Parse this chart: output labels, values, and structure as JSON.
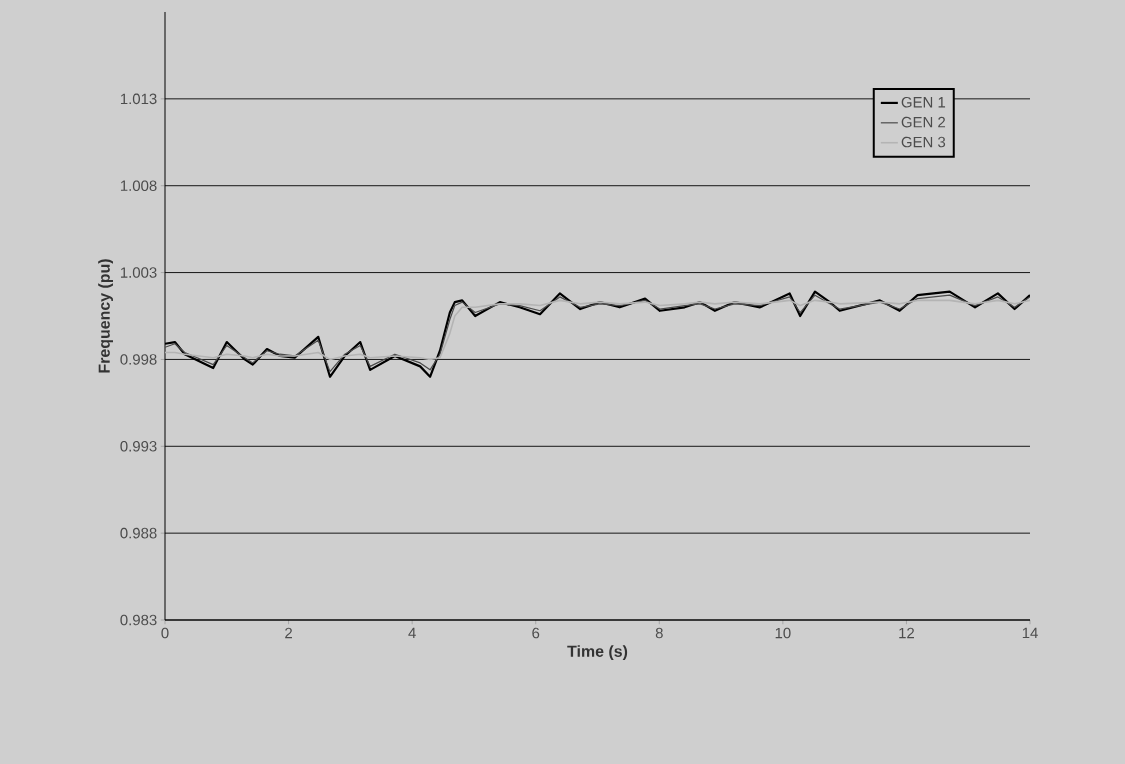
{
  "chart_data": {
    "type": "line",
    "xlabel": "Time (s)",
    "ylabel": "Frequency (pu)",
    "xlim": [
      0,
      14
    ],
    "ylim": [
      0.983,
      1.018
    ],
    "xticks": [
      0,
      2,
      4,
      6,
      8,
      10,
      12,
      14
    ],
    "yticks": [
      0.983,
      0.988,
      0.993,
      0.998,
      1.003,
      1.008,
      1.013
    ],
    "grid": "y",
    "legend": "top right",
    "marker": "none",
    "line_style": "solid",
    "x": [
      0,
      0.16,
      0.32,
      0.78,
      1.0,
      1.29,
      1.42,
      1.65,
      1.86,
      2.1,
      2.48,
      2.67,
      2.91,
      3.16,
      3.32,
      3.72,
      4.13,
      4.29,
      4.45,
      4.61,
      4.69,
      4.81,
      5.02,
      5.42,
      5.74,
      6.07,
      6.39,
      6.72,
      7.04,
      7.36,
      7.77,
      8.01,
      8.41,
      8.66,
      8.9,
      9.22,
      9.63,
      10.11,
      10.28,
      10.52,
      10.76,
      10.92,
      11.57,
      11.89,
      12.18,
      12.7,
      13.11,
      13.48,
      13.75,
      14.0
    ],
    "series": [
      {
        "name": "GEN 1",
        "color": "#000000",
        "values": [
          0.9989,
          0.999,
          0.9983,
          0.9975,
          0.999,
          0.998,
          0.9977,
          0.9986,
          0.9982,
          0.9981,
          0.9993,
          0.997,
          0.9982,
          0.999,
          0.9974,
          0.9982,
          0.9976,
          0.997,
          0.9985,
          1.0007,
          1.0013,
          1.0014,
          1.0005,
          1.0013,
          1.001,
          1.0006,
          1.0018,
          1.0009,
          1.0013,
          1.001,
          1.0015,
          1.0008,
          1.001,
          1.0013,
          1.0008,
          1.0013,
          1.001,
          1.0018,
          1.0005,
          1.0019,
          1.0013,
          1.0008,
          1.0014,
          1.0008,
          1.0017,
          1.0019,
          1.001,
          1.0018,
          1.0009,
          1.0017
        ]
      },
      {
        "name": "GEN 2",
        "color": "#4a4a4a",
        "values": [
          0.9987,
          0.9989,
          0.9984,
          0.9977,
          0.9988,
          0.9981,
          0.9978,
          0.9985,
          0.9983,
          0.9982,
          0.9991,
          0.9973,
          0.9983,
          0.9988,
          0.9976,
          0.9983,
          0.9978,
          0.9974,
          0.9983,
          1.0003,
          1.0011,
          1.0013,
          1.0007,
          1.0012,
          1.0011,
          1.0008,
          1.0016,
          1.001,
          1.0012,
          1.0011,
          1.0014,
          1.0009,
          1.0011,
          1.0012,
          1.0009,
          1.0012,
          1.0011,
          1.0016,
          1.0007,
          1.0017,
          1.0012,
          1.0009,
          1.0013,
          1.0009,
          1.0015,
          1.0017,
          1.0011,
          1.0016,
          1.001,
          1.0016
        ]
      },
      {
        "name": "GEN 3",
        "color": "#b4b4b4",
        "values": [
          0.9984,
          0.9984,
          0.9983,
          0.9981,
          0.9983,
          0.9982,
          0.9981,
          0.9983,
          0.9982,
          0.9982,
          0.9984,
          0.998,
          0.9982,
          0.9983,
          0.9981,
          0.9982,
          0.9981,
          0.998,
          0.9981,
          0.9995,
          1.0005,
          1.001,
          1.001,
          1.0012,
          1.0012,
          1.0011,
          1.0014,
          1.0012,
          1.0013,
          1.0012,
          1.0013,
          1.0011,
          1.0012,
          1.0013,
          1.0012,
          1.0013,
          1.0012,
          1.0014,
          1.0011,
          1.0014,
          1.0013,
          1.0012,
          1.0013,
          1.0012,
          1.0014,
          1.0014,
          1.0012,
          1.0014,
          1.0012,
          1.0014
        ]
      }
    ]
  }
}
